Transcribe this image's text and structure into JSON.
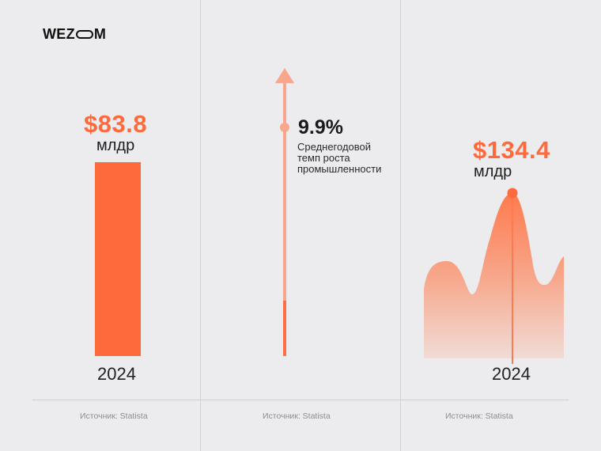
{
  "logo": {
    "text_left": "WEZ",
    "text_right": "M",
    "full": "WEZOM"
  },
  "colors": {
    "accent": "#FF6A3D",
    "accent_light": "#F7A98C",
    "background": "#ECECEE",
    "divider": "#D2D2D4",
    "source_text": "#8E8E90"
  },
  "chart_data": [
    {
      "type": "bar",
      "title": "$83.8",
      "unit": "млдр",
      "categories": [
        "2024"
      ],
      "values": [
        83.8
      ],
      "source": "Источник: Statista"
    },
    {
      "type": "arrow-indicator",
      "value_label": "9.9%",
      "value": 9.9,
      "description": [
        "Среднегодовой",
        "темп роста",
        "промышленности"
      ],
      "source": "Источник: Statista"
    },
    {
      "type": "area",
      "title": "$134.4",
      "unit": "млдр",
      "highlight_category": "2024",
      "highlight_value": 134.4,
      "source": "Источник: Statista"
    }
  ]
}
